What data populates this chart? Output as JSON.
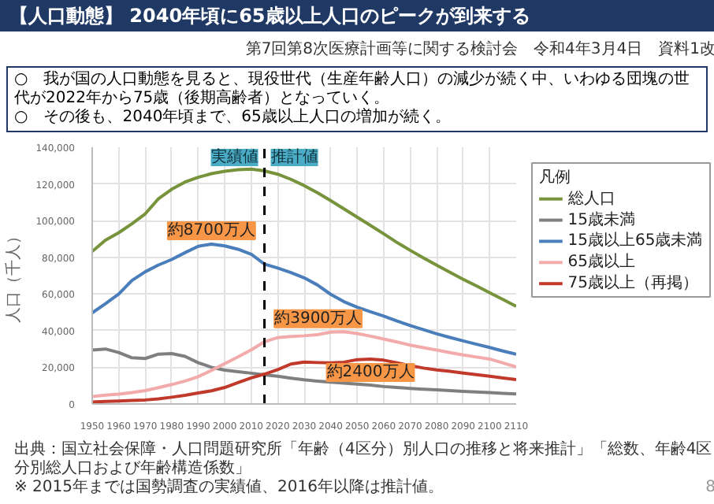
{
  "chart_data": {
    "type": "line",
    "title": "【人口動態】 2040年頃に65歳以上人口のピークが到来する",
    "ylabel": "人口（千人）",
    "legend_title": "凡例",
    "x": [
      1950,
      1955,
      1960,
      1965,
      1970,
      1975,
      1980,
      1985,
      1990,
      1995,
      2000,
      2005,
      2010,
      2015,
      2020,
      2025,
      2030,
      2035,
      2040,
      2045,
      2050,
      2055,
      2060,
      2065,
      2070,
      2075,
      2080,
      2085,
      2090,
      2095,
      2100,
      2105,
      2110
    ],
    "xlim": [
      1950,
      2110
    ],
    "xticks": [
      1950,
      1960,
      1970,
      1980,
      1990,
      2000,
      2010,
      2020,
      2030,
      2040,
      2050,
      2060,
      2070,
      2080,
      2090,
      2100,
      2110
    ],
    "ylim": [
      0,
      140000
    ],
    "yticks": [
      {
        "value": 0,
        "label": "0"
      },
      {
        "value": 20000,
        "label": "20,000"
      },
      {
        "value": 40000,
        "label": "40,000"
      },
      {
        "value": 60000,
        "label": "60,000"
      },
      {
        "value": 80000,
        "label": "80,000"
      },
      {
        "value": 100000,
        "label": "100,000"
      },
      {
        "value": 120000,
        "label": "120,000"
      },
      {
        "value": 140000,
        "label": "140,000"
      }
    ],
    "series": [
      {
        "name": "総人口",
        "color": "#77933c",
        "values": [
          83200,
          89300,
          93400,
          98300,
          103700,
          111900,
          117100,
          121000,
          123600,
          125600,
          126900,
          127800,
          128100,
          127100,
          125300,
          122500,
          119100,
          115200,
          110900,
          106400,
          101900,
          97400,
          92800,
          88100,
          83800,
          79700,
          75700,
          71800,
          68000,
          64400,
          60700,
          57000,
          53300
        ]
      },
      {
        "name": "15歳未満",
        "color": "#7f7f7f",
        "values": [
          29400,
          30000,
          28100,
          25200,
          24800,
          27200,
          27500,
          26000,
          22500,
          20000,
          18500,
          17600,
          16800,
          15900,
          15100,
          14100,
          13200,
          12500,
          11900,
          11400,
          10800,
          10300,
          9500,
          9000,
          8500,
          8100,
          7700,
          7300,
          6900,
          6500,
          6200,
          5800,
          5500
        ]
      },
      {
        "name": "15歳以上65歳未満",
        "color": "#4a7ebb",
        "values": [
          49700,
          54700,
          60000,
          67400,
          72100,
          75800,
          78800,
          82500,
          86000,
          87200,
          86200,
          84400,
          81700,
          76300,
          74100,
          71700,
          68800,
          64900,
          59800,
          55800,
          52800,
          50300,
          47900,
          45300,
          42800,
          40500,
          38300,
          36300,
          34400,
          32600,
          30800,
          28900,
          27100
        ]
      },
      {
        "name": "65歳以上",
        "color": "#f2aaaa",
        "values": [
          4100,
          4800,
          5400,
          6200,
          7300,
          8900,
          10600,
          12500,
          14900,
          18300,
          22000,
          25700,
          29500,
          33900,
          36200,
          36800,
          37200,
          37800,
          39200,
          39400,
          38400,
          37000,
          35400,
          33800,
          32100,
          30700,
          29400,
          28000,
          26700,
          25600,
          24500,
          22400,
          20200
        ]
      },
      {
        "name": "75歳以上（再掲）",
        "color": "#c0392b",
        "values": [
          1100,
          1400,
          1600,
          1900,
          2200,
          2800,
          3700,
          4700,
          6000,
          7200,
          9000,
          11600,
          14200,
          16300,
          18700,
          21800,
          22900,
          22600,
          22400,
          22800,
          24200,
          24500,
          23900,
          22500,
          20900,
          19600,
          18600,
          17800,
          16900,
          16000,
          15100,
          14200,
          13300
        ]
      }
    ],
    "ref_lines": [
      {
        "axis": "x",
        "value": 2015,
        "color": "#000000",
        "line_style": "dashed"
      }
    ],
    "annotations": [
      "第7回第8次医療計画等に関する検討会　令和4年3月4日　資料1改",
      "○　我が国の人口動態を見ると、現役世代（生産年齢人口）の減少が続く中、いわゆる団塊の世代が2022年から75歳（後期高齢者）となっていく。",
      "○　その後も、2040年頃まで、65歳以上人口の増加が続く。",
      "実績値",
      "推計値",
      "出典：国立社会保障・人口問題研究所「年齢（4区分）別人口の推移と将来推計」「総数、年齢4区分別総人口および年齢構造係数」",
      "※ 2015年までは国勢調査の実績値、2016年以降は推計値。",
      "8",
      {
        "text": "約8700万人",
        "x": 1995,
        "y": 87200
      },
      {
        "text": "約3900万人",
        "x": 2040,
        "y": 39200
      },
      {
        "text": "約2400万人",
        "x": 2055,
        "y": 24500
      }
    ],
    "grid": true,
    "legend": "right",
    "marker": "none",
    "line_style": "solid"
  }
}
